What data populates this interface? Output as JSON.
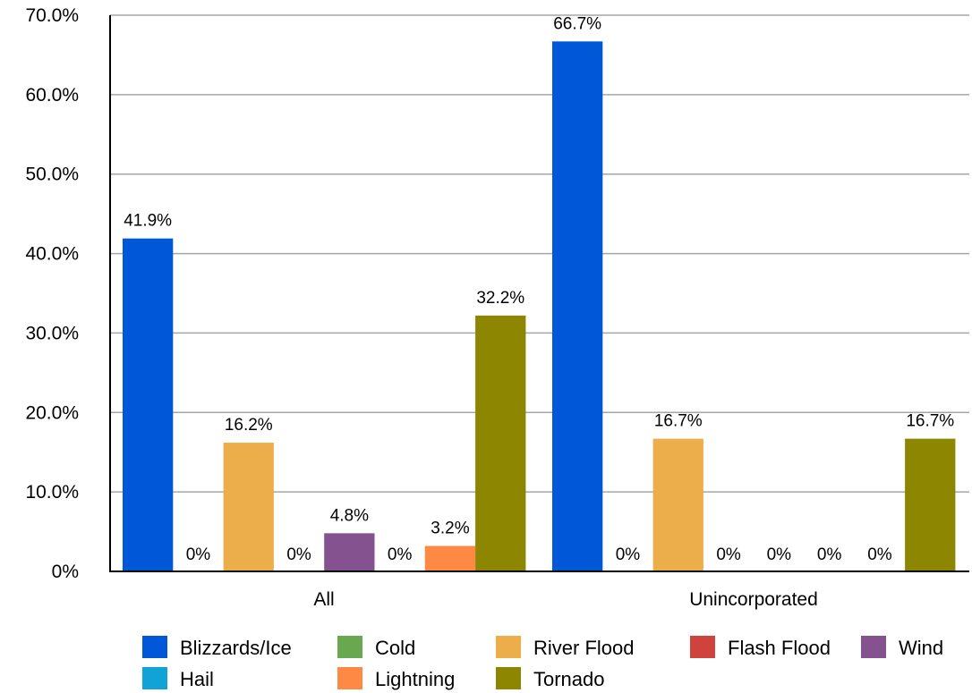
{
  "chart_data": {
    "type": "bar",
    "categories": [
      "All",
      "Unincorporated"
    ],
    "ylim": [
      0,
      70
    ],
    "yticks": [
      "0%",
      "10.0%",
      "20.0%",
      "30.0%",
      "40.0%",
      "50.0%",
      "60.0%",
      "70.0%"
    ],
    "grid": true,
    "legend_placement": "bottom",
    "series": [
      {
        "name": "Blizzards/Ice",
        "color": "#0057d8",
        "values": [
          41.9,
          66.7
        ],
        "labels": [
          "41.9%",
          "66.7%"
        ]
      },
      {
        "name": "Cold",
        "color": "#6aa84f",
        "values": [
          0,
          0
        ],
        "labels": [
          "0%",
          "0%"
        ]
      },
      {
        "name": "River Flood",
        "color": "#ebae4b",
        "values": [
          16.2,
          16.7
        ],
        "labels": [
          "16.2%",
          "16.7%"
        ]
      },
      {
        "name": "Flash Flood",
        "color": "#d0433d",
        "values": [
          0,
          0
        ],
        "labels": [
          "0%",
          "0%"
        ]
      },
      {
        "name": "Wind",
        "color": "#84528e",
        "values": [
          4.8,
          0
        ],
        "labels": [
          "4.8%",
          "0%"
        ]
      },
      {
        "name": "Hail",
        "color": "#12a3d6",
        "values": [
          0,
          0
        ],
        "labels": [
          "0%",
          "0%"
        ]
      },
      {
        "name": "Lightning",
        "color": "#fd8945",
        "values": [
          3.2,
          0
        ],
        "labels": [
          "3.2%",
          "0%"
        ]
      },
      {
        "name": "Tornado",
        "color": "#8c8600",
        "values": [
          32.2,
          16.7
        ],
        "labels": [
          "32.2%",
          "16.7%"
        ]
      }
    ]
  }
}
